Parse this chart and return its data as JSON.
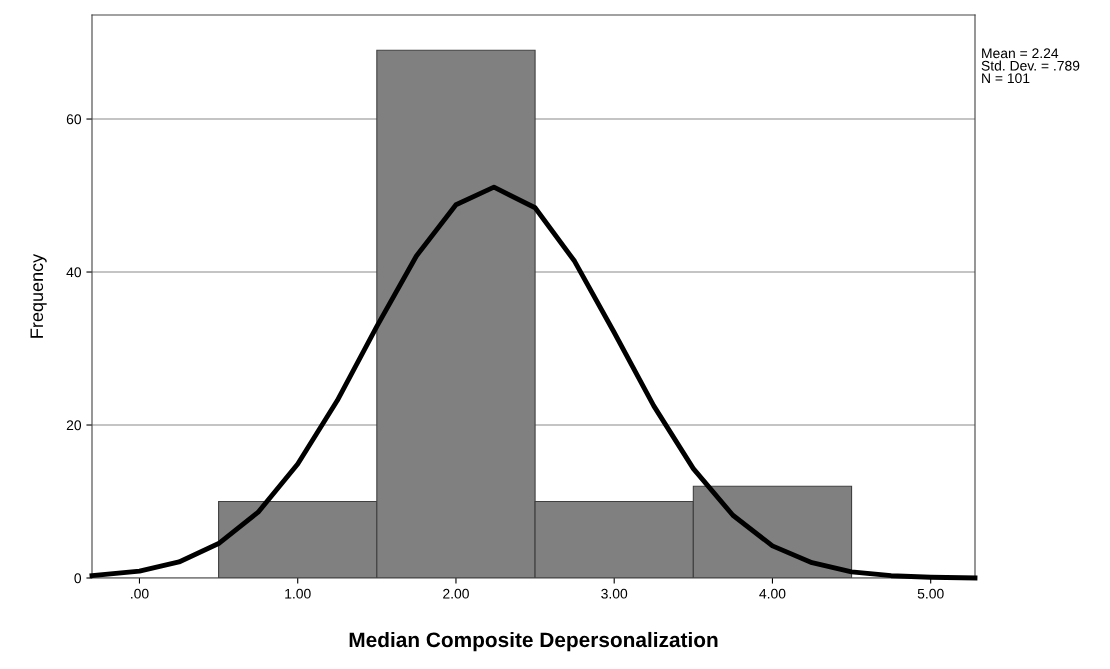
{
  "chart_data": {
    "type": "histogram",
    "xlabel": "Median Composite Depersonalization",
    "ylabel": "Frequency",
    "bins": [
      0.5,
      1.5,
      2.5,
      3.5,
      4.5
    ],
    "values": [
      10,
      69,
      10,
      12
    ],
    "color": "#808080",
    "series": [
      {
        "type": "line",
        "color": "#000000",
        "x": [
          -0.3,
          0.0,
          0.25,
          0.5,
          0.75,
          1.0,
          1.25,
          1.5,
          1.75,
          2.0,
          2.24,
          2.5,
          2.75,
          3.0,
          3.25,
          3.5,
          3.75,
          4.0,
          4.25,
          4.5,
          4.75,
          5.0,
          5.28
        ],
        "values": [
          0.3,
          0.9,
          2.1,
          4.5,
          8.6,
          14.9,
          23.2,
          32.9,
          42.1,
          48.8,
          51.1,
          48.4,
          41.4,
          32.1,
          22.5,
          14.3,
          8.2,
          4.2,
          2.0,
          0.8,
          0.3,
          0.1,
          0.0
        ]
      }
    ],
    "xlim": [
      -0.3,
      5.28
    ],
    "ylim": [
      0,
      73.6
    ],
    "xticks": [
      {
        "value": 0,
        "label": ".00"
      },
      {
        "value": 1,
        "label": "1.00"
      },
      {
        "value": 2,
        "label": "2.00"
      },
      {
        "value": 3,
        "label": "3.00"
      },
      {
        "value": 4,
        "label": "4.00"
      },
      {
        "value": 5,
        "label": "5.00"
      }
    ],
    "yticks": [
      0,
      20,
      40,
      60
    ],
    "grid": "y",
    "line_style": "solid",
    "annotations": [
      "Mean = 2.24\nStd. Dev. = .789\nN = 101"
    ]
  }
}
